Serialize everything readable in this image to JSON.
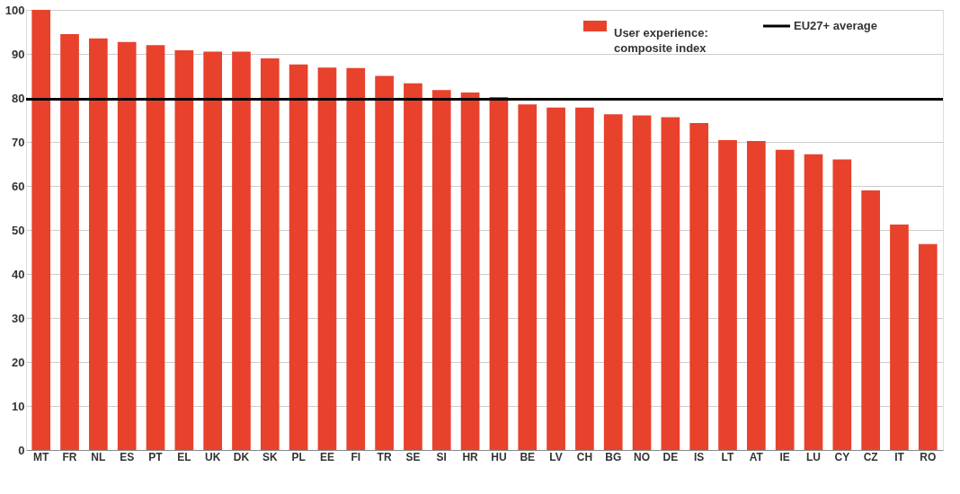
{
  "chart_data": {
    "type": "bar",
    "categories": [
      "MT",
      "FR",
      "NL",
      "ES",
      "PT",
      "EL",
      "UK",
      "DK",
      "SK",
      "PL",
      "EE",
      "FI",
      "TR",
      "SE",
      "SI",
      "HR",
      "HU",
      "BE",
      "LV",
      "CH",
      "BG",
      "NO",
      "DE",
      "IS",
      "LT",
      "AT",
      "IE",
      "LU",
      "CY",
      "CZ",
      "IT",
      "RO"
    ],
    "series": [
      {
        "name": "User experience: composite index",
        "color": "#e8412c",
        "values": [
          100,
          94.5,
          93.5,
          92.7,
          92,
          90.8,
          90.5,
          90.5,
          89,
          87.6,
          86.9,
          86.8,
          85,
          83.3,
          81.8,
          81.2,
          80.2,
          78.5,
          77.8,
          77.8,
          76.3,
          76,
          75.6,
          74.3,
          70.4,
          70.2,
          68.2,
          67.2,
          66,
          59,
          51.2,
          46.8
        ]
      }
    ],
    "ref_lines": [
      {
        "axis": "y",
        "value": 79.7,
        "label": "EU27+ average",
        "color": "#000000"
      }
    ],
    "ylim": [
      0,
      100
    ],
    "yticks": [
      0,
      10,
      20,
      30,
      40,
      50,
      60,
      70,
      80,
      90,
      100
    ],
    "grid": "y",
    "legend": "top right"
  }
}
